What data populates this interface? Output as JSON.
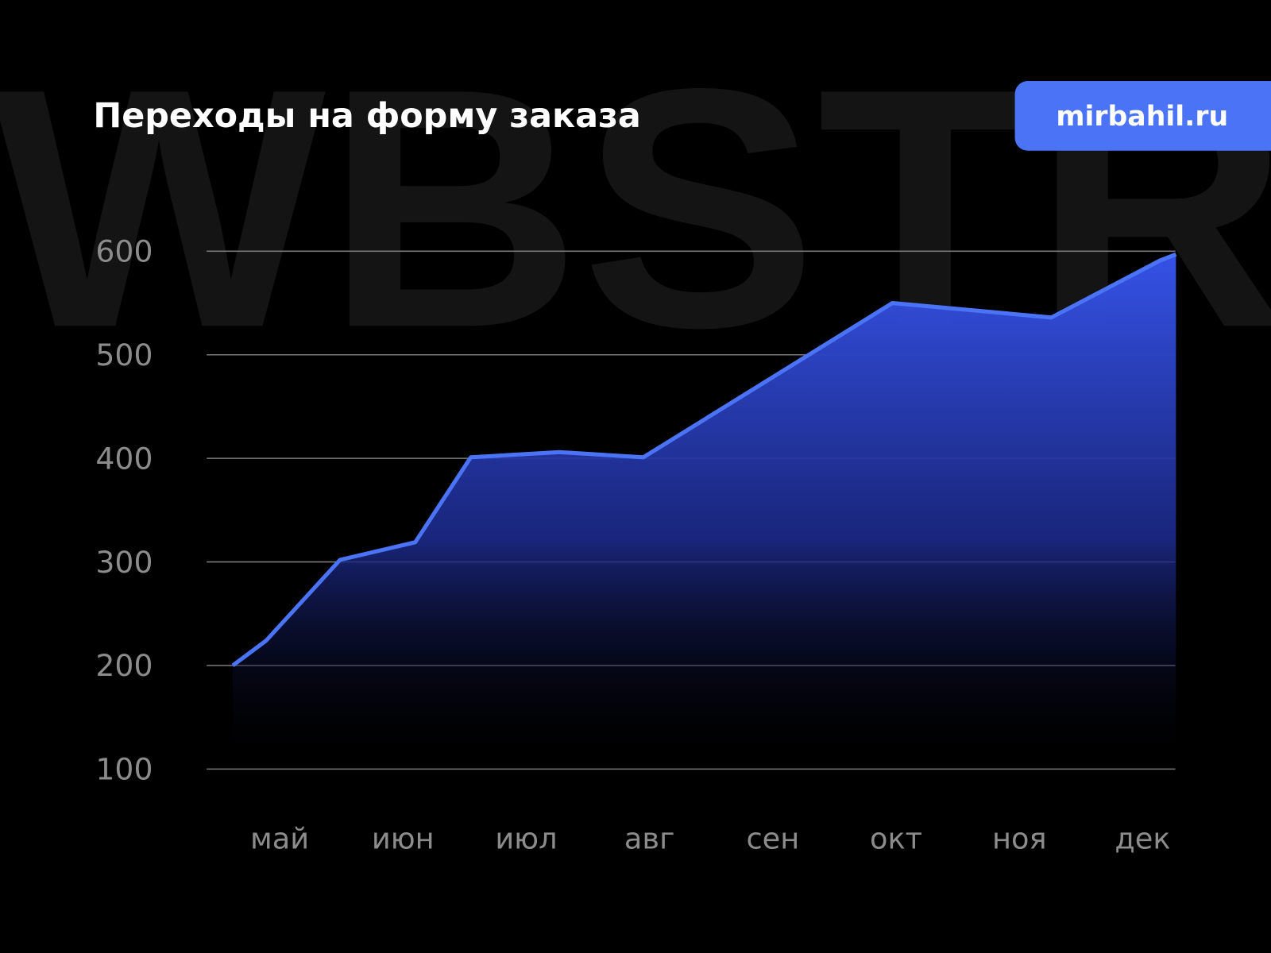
{
  "watermark": "WBSTR",
  "badge": {
    "label": "mirbahil.ru",
    "color": "#4a74f5"
  },
  "chart_data": {
    "type": "area",
    "title": "Переходы на форму заказа",
    "xlabel": "",
    "ylabel": "",
    "categories": [
      "май",
      "июн",
      "июл",
      "авг",
      "сен",
      "окт",
      "ноя",
      "дек"
    ],
    "y_ticks": [
      100,
      200,
      300,
      400,
      500,
      600
    ],
    "ylim": [
      100,
      600
    ],
    "grid": true,
    "line_color": "#4a74f5",
    "fill_color": "#3552e6",
    "points": [
      {
        "x": -0.38,
        "y": 200
      },
      {
        "x": -0.11,
        "y": 224
      },
      {
        "x": 0.49,
        "y": 302
      },
      {
        "x": 1.1,
        "y": 319
      },
      {
        "x": 1.55,
        "y": 401
      },
      {
        "x": 2.27,
        "y": 406
      },
      {
        "x": 2.95,
        "y": 401
      },
      {
        "x": 4.97,
        "y": 550
      },
      {
        "x": 6.26,
        "y": 536
      },
      {
        "x": 7.14,
        "y": 591
      },
      {
        "x": 7.27,
        "y": 597
      }
    ]
  }
}
